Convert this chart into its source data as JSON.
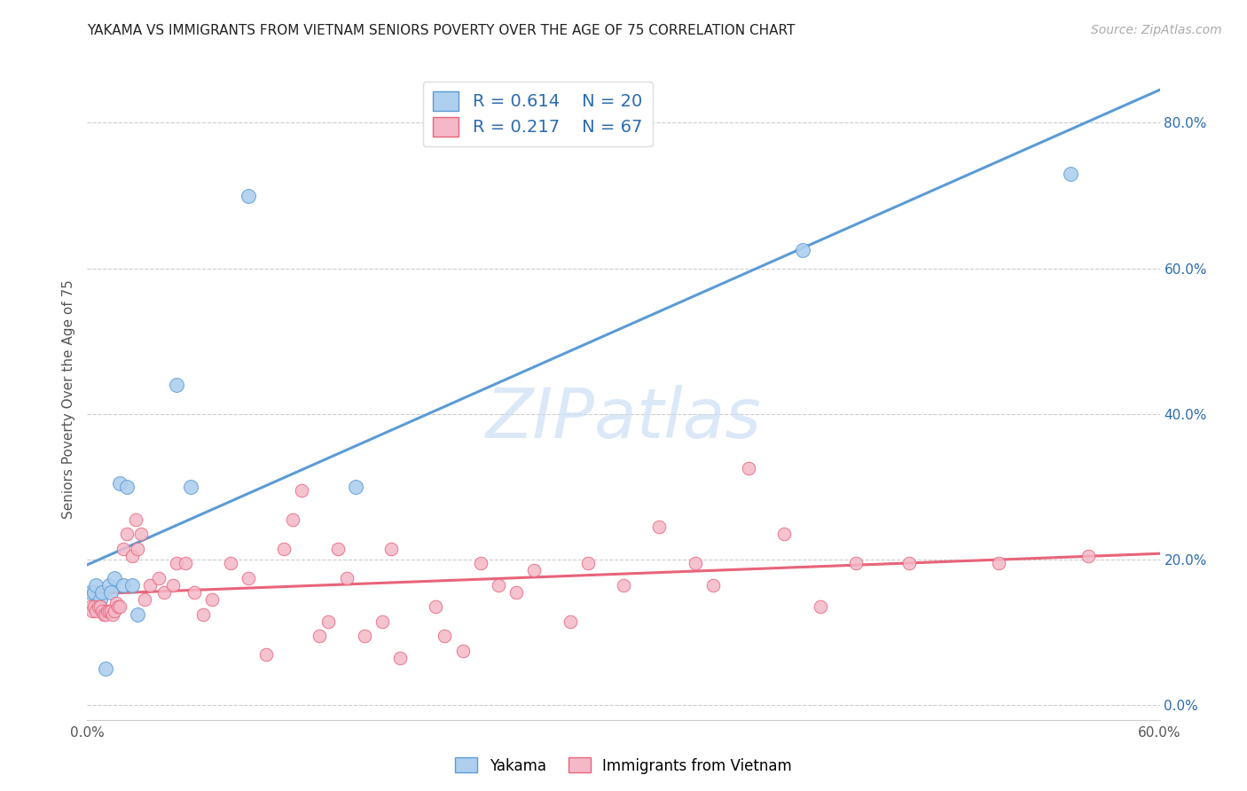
{
  "title": "YAKAMA VS IMMIGRANTS FROM VIETNAM SENIORS POVERTY OVER THE AGE OF 75 CORRELATION CHART",
  "source": "Source: ZipAtlas.com",
  "ylabel": "Seniors Poverty Over the Age of 75",
  "xlim": [
    0.0,
    0.6
  ],
  "ylim": [
    -0.02,
    0.86
  ],
  "right_yticks": [
    0.0,
    0.2,
    0.4,
    0.6,
    0.8
  ],
  "right_yticklabels": [
    "0.0%",
    "20.0%",
    "40.0%",
    "60.0%",
    "80.0%"
  ],
  "xticks": [
    0.0,
    0.1,
    0.2,
    0.3,
    0.4,
    0.5,
    0.6
  ],
  "xticklabels": [
    "0.0%",
    "",
    "",
    "",
    "",
    "",
    "60.0%"
  ],
  "yakama_R": "0.614",
  "yakama_N": "20",
  "vietnam_R": "0.217",
  "vietnam_N": "67",
  "yakama_color": "#aecfee",
  "yakama_line_color": "#5b9bd5",
  "vietnam_color": "#f4b8c8",
  "vietnam_line_color": "#e8647a",
  "legend_color": "#2b6cb0",
  "watermark_color": "#c8ddf5",
  "watermark": "ZIPatlas",
  "yakama_x": [
    0.002,
    0.004,
    0.005,
    0.007,
    0.008,
    0.01,
    0.012,
    0.013,
    0.015,
    0.018,
    0.02,
    0.022,
    0.025,
    0.028,
    0.05,
    0.058,
    0.09,
    0.15,
    0.4,
    0.55
  ],
  "yakama_y": [
    0.155,
    0.155,
    0.165,
    0.145,
    0.155,
    0.05,
    0.165,
    0.155,
    0.175,
    0.305,
    0.165,
    0.3,
    0.165,
    0.125,
    0.44,
    0.3,
    0.7,
    0.3,
    0.625,
    0.73
  ],
  "vietnam_x": [
    0.002,
    0.003,
    0.004,
    0.005,
    0.006,
    0.007,
    0.008,
    0.009,
    0.01,
    0.011,
    0.012,
    0.013,
    0.014,
    0.015,
    0.016,
    0.017,
    0.018,
    0.02,
    0.022,
    0.025,
    0.027,
    0.028,
    0.03,
    0.032,
    0.035,
    0.04,
    0.043,
    0.048,
    0.05,
    0.055,
    0.06,
    0.065,
    0.07,
    0.08,
    0.09,
    0.1,
    0.11,
    0.115,
    0.12,
    0.13,
    0.135,
    0.14,
    0.145,
    0.155,
    0.165,
    0.17,
    0.175,
    0.195,
    0.2,
    0.21,
    0.22,
    0.23,
    0.24,
    0.25,
    0.27,
    0.28,
    0.3,
    0.32,
    0.34,
    0.35,
    0.37,
    0.39,
    0.41,
    0.43,
    0.46,
    0.51,
    0.56
  ],
  "vietnam_y": [
    0.135,
    0.13,
    0.135,
    0.13,
    0.135,
    0.135,
    0.13,
    0.125,
    0.125,
    0.13,
    0.13,
    0.13,
    0.125,
    0.13,
    0.14,
    0.135,
    0.135,
    0.215,
    0.235,
    0.205,
    0.255,
    0.215,
    0.235,
    0.145,
    0.165,
    0.175,
    0.155,
    0.165,
    0.195,
    0.195,
    0.155,
    0.125,
    0.145,
    0.195,
    0.175,
    0.07,
    0.215,
    0.255,
    0.295,
    0.095,
    0.115,
    0.215,
    0.175,
    0.095,
    0.115,
    0.215,
    0.065,
    0.135,
    0.095,
    0.075,
    0.195,
    0.165,
    0.155,
    0.185,
    0.115,
    0.195,
    0.165,
    0.245,
    0.195,
    0.165,
    0.325,
    0.235,
    0.135,
    0.195,
    0.195,
    0.195,
    0.205
  ]
}
